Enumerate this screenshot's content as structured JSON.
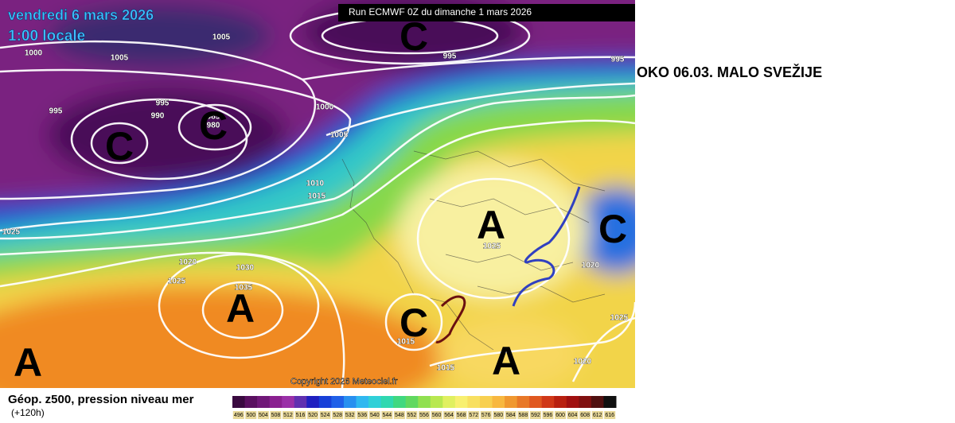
{
  "header": {
    "date": "vendredi 6 mars 2026",
    "time": "1:00 locale",
    "run": "Run ECMWF 0Z du dimanche 1 mars 2026"
  },
  "annotation": "OKO 06.03. MALO SVEŽIJE",
  "footer": {
    "title": "Géop. z500, pression niveau mer",
    "lead": "(+120h)",
    "copyright": "Copyright 2026 Meteociel.fr"
  },
  "isobar_labels": [
    "1005",
    "1000",
    "1005",
    "995",
    "995",
    "990",
    "985",
    "980",
    "1000",
    "1005",
    "995",
    "995",
    "1010",
    "1015",
    "1025",
    "1020",
    "1030",
    "1025",
    "1035",
    "1025",
    "1020",
    "1015",
    "1015",
    "1020",
    "1025"
  ],
  "pressure_centers": [
    "C",
    "C",
    "C",
    "C",
    "A",
    "A",
    "A",
    "C",
    "A"
  ],
  "legend": {
    "labels": [
      "496",
      "500",
      "504",
      "508",
      "512",
      "516",
      "520",
      "524",
      "528",
      "532",
      "536",
      "540",
      "544",
      "548",
      "552",
      "556",
      "560",
      "564",
      "568",
      "572",
      "576",
      "580",
      "584",
      "588",
      "592",
      "596",
      "600",
      "604",
      "608",
      "612",
      "616"
    ],
    "colors": [
      "#3a0a40",
      "#5a1060",
      "#701878",
      "#8a2090",
      "#9a30a8",
      "#6030b0",
      "#2020c0",
      "#1840d8",
      "#2060e8",
      "#2890f0",
      "#30b8f0",
      "#30d0d8",
      "#30d8b0",
      "#40d880",
      "#60d860",
      "#90e050",
      "#b8e850",
      "#e0f060",
      "#f8f070",
      "#f8e060",
      "#f8d050",
      "#f8b840",
      "#f09830",
      "#e87828",
      "#e05820",
      "#d03818",
      "#b82010",
      "#a01010",
      "#801010",
      "#501010",
      "#101010"
    ]
  }
}
